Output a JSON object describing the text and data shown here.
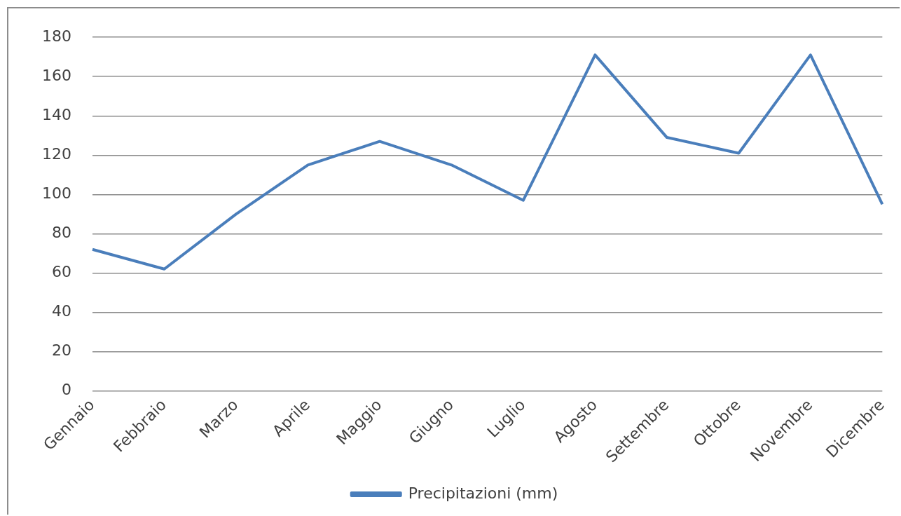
{
  "chart_data": {
    "type": "line",
    "categories": [
      "Gennaio",
      "Febbraio",
      "Marzo",
      "Aprile",
      "Maggio",
      "Giugno",
      "Luglio",
      "Agosto",
      "Settembre",
      "Ottobre",
      "Novembre",
      "Dicembre"
    ],
    "series": [
      {
        "name": "Precipitazioni (mm)",
        "color": "#4a7ebb",
        "values": [
          72,
          62,
          90,
          115,
          127,
          115,
          97,
          171,
          129,
          121,
          171,
          95
        ]
      }
    ],
    "ylim": [
      0,
      180
    ],
    "yticks": [
      0,
      20,
      40,
      60,
      80,
      100,
      120,
      140,
      160,
      180
    ],
    "grid": "y",
    "legend": "bottom",
    "marker": "none",
    "line_style": "solid"
  }
}
